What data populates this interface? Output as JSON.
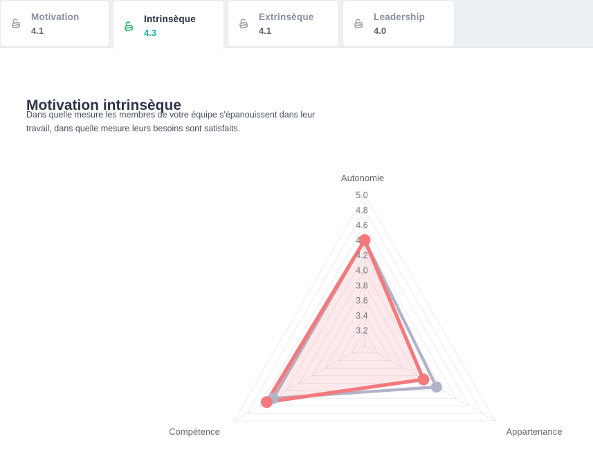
{
  "tabs": [
    {
      "label": "Motivation",
      "value": "4.1",
      "state": "inactive"
    },
    {
      "label": "Intrinsèque",
      "value": "4.3",
      "state": "active"
    },
    {
      "label": "Extrinsèque",
      "value": "4.1",
      "state": "inactive"
    },
    {
      "label": "Leadership",
      "value": "4.0",
      "state": "inactive"
    }
  ],
  "colors": {
    "tab_strip_bg": "#edf0f2",
    "active_icon_green": "#2eb46b",
    "active_value_teal": "#17b1a0",
    "inactive_text_gray": "#878e9c",
    "series_red": "#f4797d",
    "series_gray": "#b1b4c9"
  },
  "section": {
    "title": "Motivation intrinsèque",
    "description_lines": [
      "Dans quelle mesure les membres de votre équipe s'épanouissent dans leur",
      "travail, dans quelle mesure leurs besoins sont satisfaits."
    ]
  },
  "chart_data": {
    "type": "radar",
    "title": "",
    "indicators": [
      "Autonomie",
      "Appartenance",
      "Compétence"
    ],
    "min": 3.0,
    "max": 5.0,
    "tick_step": 0.2,
    "tick_labels": [
      "5.0",
      "4.8",
      "4.6",
      "4.4",
      "4.2",
      "4.0",
      "3.8",
      "3.6",
      "3.4",
      "3.2"
    ],
    "grid": "nested-triangles",
    "legend": "none",
    "series": [
      {
        "name": "comparison-gray",
        "color": "#b1b4c9",
        "fill": "none",
        "values": [
          4.4,
          4.1,
          4.4
        ],
        "line_width": 4.4,
        "dot_radius": 8
      },
      {
        "name": "score-red",
        "color": "#f4797d",
        "fill": "rgba(244,121,125,0.16)",
        "values": [
          4.4,
          3.9,
          4.5
        ],
        "line_width": 5.2,
        "dot_radius": 8.5
      }
    ]
  }
}
